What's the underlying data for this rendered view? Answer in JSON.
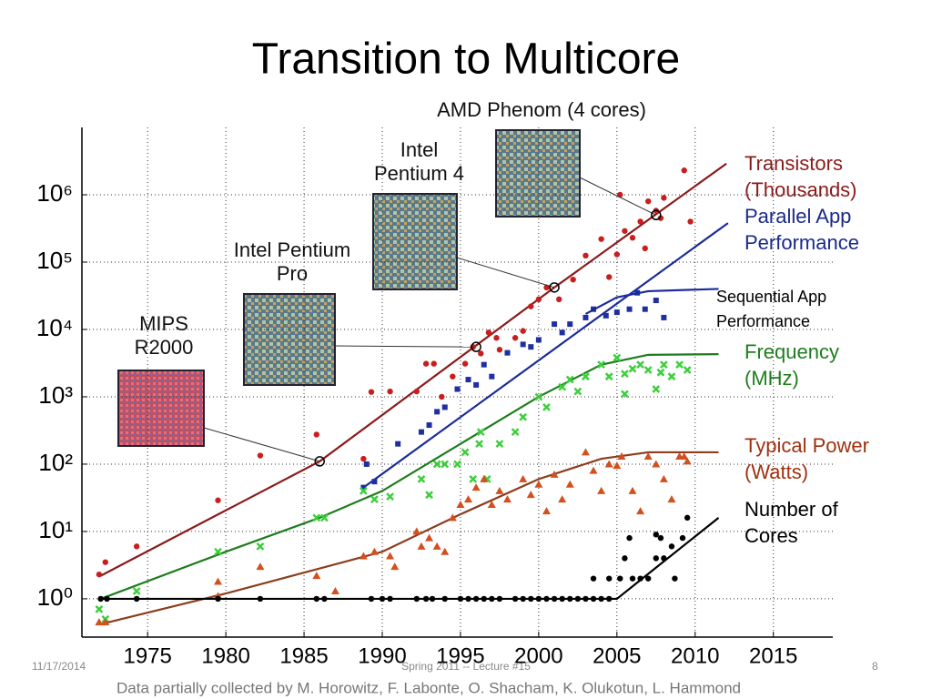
{
  "header": {
    "title": "Transition to Multicore"
  },
  "chart_data": {
    "type": "scatter",
    "log_y": true,
    "grid": true,
    "xlim": [
      1970.8,
      2018.8
    ],
    "xticks": [
      1975,
      1980,
      1985,
      1990,
      1995,
      2000,
      2005,
      2010,
      2015
    ],
    "ylim": [
      0.27,
      10000000
    ],
    "yticks": [
      {
        "value": 1,
        "label": "10⁰"
      },
      {
        "value": 10,
        "label": "10¹"
      },
      {
        "value": 100,
        "label": "10²"
      },
      {
        "value": 1000,
        "label": "10³"
      },
      {
        "value": 10000,
        "label": "10⁴"
      },
      {
        "value": 100000,
        "label": "10⁵"
      },
      {
        "value": 1000000,
        "label": "10⁶"
      }
    ],
    "series": [
      {
        "name": "Transistors (Thousands)",
        "color": "#c81e1e",
        "label_color": "#8b1a1a",
        "marker": "circle",
        "x": [
          1971.9,
          1972.3,
          1974.3,
          1979.5,
          1982.2,
          1985.8,
          1988.8,
          1989.3,
          1990.5,
          1992.2,
          1992.8,
          1993.3,
          1993.8,
          1994.5,
          1995.3,
          1995.8,
          1996.3,
          1996.8,
          1997.3,
          1997.5,
          1998.5,
          1999,
          1999.5,
          2000,
          2000.5,
          2001.3,
          2002.2,
          2003,
          2004,
          2004.5,
          2005,
          2005.5,
          2006,
          2006.5,
          2007,
          2007.5,
          2008,
          2009.3,
          2009.7,
          2007.8,
          2006.8,
          2005.2
        ],
        "values": [
          2.3,
          3.5,
          6,
          29,
          134,
          275,
          120,
          1180,
          1200,
          1200,
          3100,
          3100,
          1000,
          2000,
          3100,
          5500,
          4400,
          9000,
          7500,
          5000,
          7500,
          9500,
          22000,
          28000,
          42000,
          28000,
          55000,
          125000,
          220000,
          60000,
          130000,
          290000,
          230000,
          400000,
          800000,
          580000,
          900000,
          2300000,
          400000,
          450000,
          160000,
          1000000
        ],
        "trend": {
          "color": "#8b1a1a",
          "x": [
            1972,
            1986,
            2001,
            2012
          ],
          "values": [
            2.2,
            110,
            42000,
            2900000
          ]
        }
      },
      {
        "name": "Parallel App Performance",
        "color": "#1f2fa0",
        "label_color": "#1a2a8a",
        "marker": "square",
        "x": [
          1988.8,
          1989,
          1989.5,
          1991,
          1992.5,
          1993,
          1993.5,
          1994,
          1994.8,
          1995.5,
          1996,
          1996.5,
          1997,
          1998,
          1999,
          1999.5,
          2000,
          2001,
          2001.5,
          2002,
          2003,
          2003.5,
          2004.3,
          2005,
          2005.8,
          2006.3,
          2006.8,
          2007.5,
          2008
        ],
        "values": [
          45,
          100,
          55,
          200,
          300,
          380,
          600,
          700,
          1300,
          1800,
          1500,
          3000,
          2000,
          4500,
          6000,
          5500,
          7000,
          12000,
          9000,
          12000,
          15000,
          20000,
          16000,
          18000,
          20000,
          35000,
          20000,
          27000,
          15000
        ],
        "trend": {
          "color": "#1a2a9a",
          "x": [
            1988.8,
            2012.1
          ],
          "values": [
            45,
            380000
          ]
        }
      },
      {
        "name": "Sequential App Performance",
        "color": "#1a2a9a",
        "label_color": "#000000",
        "trend": {
          "color": "#1a2a9a",
          "x": [
            2003,
            2005,
            2007,
            2011.5
          ],
          "values": [
            17000,
            30000,
            37000,
            40000
          ]
        }
      },
      {
        "name": "Frequency (MHz)",
        "color": "#3ccf3c",
        "label_color": "#1e7d1e",
        "marker": "cross",
        "x": [
          1971.9,
          1972.3,
          1974.3,
          1979.5,
          1982.2,
          1985.8,
          1986.3,
          1988.8,
          1989.5,
          1990.5,
          1992.5,
          1993,
          1993.5,
          1994,
          1994.8,
          1995.3,
          1995.8,
          1996.2,
          1996.7,
          1996.3,
          1997.5,
          1998.5,
          1999,
          2000,
          2000.5,
          2001.5,
          2002,
          2002.5,
          2003,
          2004,
          2004.5,
          2005,
          2005.5,
          2006,
          2006.5,
          2007,
          2007.8,
          2008,
          2009,
          2009.5,
          2008.5,
          2005.5,
          2007.5
        ],
        "values": [
          0.7,
          0.5,
          1.3,
          5,
          6,
          16,
          16,
          40,
          30,
          33,
          60,
          35,
          100,
          100,
          100,
          150,
          60,
          200,
          60,
          300,
          200,
          300,
          500,
          1000,
          700,
          1400,
          1800,
          1200,
          2000,
          3000,
          2000,
          3800,
          2200,
          2600,
          3000,
          2500,
          2300,
          3000,
          3000,
          2500,
          2000,
          1100,
          1300
        ],
        "trend": {
          "color": "#1e7d1e",
          "x": [
            1972,
            1980,
            1986,
            1990,
            1995,
            2000,
            2004,
            2007,
            2011.5
          ],
          "values": [
            1,
            5,
            16,
            40,
            200,
            1000,
            3000,
            4200,
            4300
          ]
        }
      },
      {
        "name": "Typical Power (Watts)",
        "color": "#d2501e",
        "label_color": "#a0300f",
        "marker": "triangle",
        "x": [
          1971.9,
          1972.3,
          1979.5,
          1979.5,
          1982.2,
          1985.8,
          1987,
          1988.8,
          1989.5,
          1990.5,
          1990.8,
          1992.2,
          1992.5,
          1993,
          1993.5,
          1994,
          1994.5,
          1995,
          1995.5,
          1996,
          1996.5,
          1997,
          1997.5,
          1998,
          1999,
          1999.5,
          2000,
          2000.5,
          2001,
          2001.5,
          2002,
          2003,
          2003.5,
          2004,
          2004.5,
          2005,
          2005.3,
          2006,
          2006.5,
          2007,
          2007.5,
          2008,
          2008.5,
          2009,
          2009.5,
          2009.3
        ],
        "values": [
          0.45,
          0.45,
          1.8,
          1.1,
          3,
          2.2,
          1.3,
          4.3,
          5,
          4.3,
          3,
          10,
          6,
          8,
          6,
          5,
          16,
          25,
          30,
          45,
          60,
          25,
          40,
          30,
          60,
          35,
          50,
          20,
          70,
          30,
          50,
          150,
          80,
          40,
          100,
          95,
          130,
          40,
          20,
          130,
          100,
          60,
          30,
          130,
          110,
          130
        ],
        "trend": {
          "color": "#8b3d1e",
          "x": [
            1972,
            1980,
            1990,
            1995,
            2000,
            2004,
            2007,
            2011.5
          ],
          "values": [
            0.42,
            1.2,
            5,
            18,
            60,
            120,
            150,
            150
          ]
        }
      },
      {
        "name": "Number of Cores",
        "color": "#000000",
        "label_color": "#000000",
        "marker": "circle",
        "x": [
          1972,
          1972.4,
          1974.3,
          1979.5,
          1982.2,
          1985.8,
          1986.3,
          1989.3,
          1990,
          1990.5,
          1992.2,
          1992.8,
          1993.2,
          1994,
          1995,
          1995.5,
          1996,
          1996.5,
          1997,
          1997.5,
          1998.5,
          1999,
          1999.5,
          2000,
          2000.5,
          2001,
          2001.5,
          2002,
          2002.5,
          2003,
          2003.5,
          2004,
          2004.5,
          2003.5,
          2004.5,
          2005.2,
          2005.5,
          2005.8,
          2006,
          2006.5,
          2007,
          2007.5,
          2007.8,
          2008,
          2008.5,
          2009.2,
          2009.5,
          2008.7,
          2007.5
        ],
        "values": [
          1,
          1,
          1,
          1,
          1,
          1,
          1,
          1,
          1,
          1,
          1,
          1,
          1,
          1,
          1,
          1,
          1,
          1,
          1,
          1,
          1,
          1,
          1,
          1,
          1,
          1,
          1,
          1,
          1,
          1,
          1,
          1,
          1,
          2,
          2,
          2,
          4,
          8,
          2,
          2,
          2,
          4,
          8,
          4,
          6,
          8,
          16,
          2,
          9
        ],
        "trend": {
          "color": "#000000",
          "x": [
            1972,
            2005,
            2011.5
          ],
          "values": [
            1,
            1,
            16
          ]
        }
      }
    ],
    "annotations": [
      {
        "text": "MIPS R2000",
        "x": 1986,
        "y": 110
      },
      {
        "text": "Intel Pentium Pro",
        "x": 1996,
        "y": 5500
      },
      {
        "text": "Intel Pentium 4",
        "x": 2001,
        "y": 42000
      },
      {
        "text": "AMD Phenom (4 cores)",
        "x": 2007.5,
        "y": 500000
      }
    ],
    "source": "Data partially collected by M. Horowitz, F. Labonte, O. Shacham, K. Olukotun, L. Hammond"
  },
  "footer": {
    "date": "11/17/2014",
    "center": "Spring 2011 -- Lecture #15",
    "page": "8"
  }
}
